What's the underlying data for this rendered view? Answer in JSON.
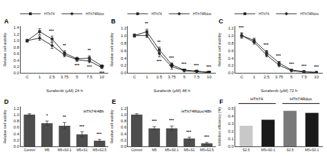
{
  "chart_data": [
    {
      "type": "line",
      "title": "A",
      "xlabel": "Sorafenib (μM) 24 h",
      "ylabel": "Relative cell viability",
      "categories": [
        "C",
        "1",
        "2.5",
        "3.75",
        "5",
        "7.5",
        "10"
      ],
      "series": [
        {
          "name": "HTh74",
          "color": "#2b2b2b",
          "marker": "square",
          "values": [
            1.0,
            1.28,
            1.05,
            0.62,
            0.44,
            0.46,
            0.22
          ],
          "errors": [
            0.04,
            0.09,
            0.09,
            0.07,
            0.05,
            0.07,
            0.03
          ]
        },
        {
          "name": "HTh74Rdox",
          "color": "#2b2b2b",
          "marker": "diamond",
          "values": [
            1.0,
            1.08,
            0.85,
            0.56,
            0.41,
            0.37,
            0.17
          ],
          "errors": [
            0.04,
            0.07,
            0.09,
            0.06,
            0.05,
            0.05,
            0.03
          ]
        }
      ],
      "ylim": [
        0.0,
        1.45
      ],
      "yticks": [
        {
          "value": 0.0,
          "label": "0.0"
        },
        0.2,
        0.4,
        0.6,
        0.8,
        {
          "value": 1.0,
          "label": "1.0"
        },
        1.2,
        1.4
      ],
      "grid": false,
      "legend": "top",
      "annotations": [
        {
          "category": "2.5",
          "text": "***",
          "position": "above"
        },
        {
          "category": "3.75",
          "text": "**",
          "position": "above"
        },
        {
          "category": "7.5",
          "text": "**",
          "position": "above"
        },
        {
          "category": "5",
          "text": "***",
          "position": "between"
        },
        {
          "category": "10",
          "text": "***",
          "position": "between"
        },
        {
          "category": "5",
          "text": "***",
          "position": "below"
        },
        {
          "category": "7.5",
          "text": "***",
          "position": "below"
        },
        {
          "category": "10",
          "text": "***",
          "position": "below"
        }
      ]
    },
    {
      "type": "line",
      "title": "B",
      "xlabel": "Sorafenib (μM) 48 h",
      "ylabel": "Relative cell viability",
      "categories": [
        "C",
        "1",
        "2.5",
        "3.75",
        "5",
        "7.5",
        "10"
      ],
      "series": [
        {
          "name": "HTh74",
          "color": "#2b2b2b",
          "marker": "square",
          "values": [
            1.0,
            1.1,
            0.62,
            0.22,
            0.08,
            0.05,
            0.02
          ],
          "errors": [
            0.04,
            0.07,
            0.07,
            0.05,
            0.02,
            0.01,
            0.01
          ]
        },
        {
          "name": "HTh74Rdox",
          "color": "#2b2b2b",
          "marker": "diamond",
          "values": [
            1.0,
            1.0,
            0.52,
            0.17,
            0.06,
            0.04,
            0.01
          ],
          "errors": [
            0.04,
            0.05,
            0.09,
            0.07,
            0.02,
            0.01,
            0.005
          ]
        }
      ],
      "ylim": [
        0.0,
        1.25
      ],
      "yticks": [
        {
          "value": 0.0,
          "label": "0.0"
        },
        0.2,
        0.4,
        0.6,
        0.8,
        {
          "value": 1.0,
          "label": "1.0"
        },
        1.2
      ],
      "grid": false,
      "legend": "top",
      "annotations": [
        {
          "category": "1",
          "text": "**",
          "position": "above"
        },
        {
          "category": "2.5",
          "text": "**",
          "position": "above"
        },
        {
          "category": "3.75",
          "text": "***",
          "position": "above"
        },
        {
          "category": "5",
          "text": "***",
          "position": "above"
        },
        {
          "category": "7.5",
          "text": "***",
          "position": "above"
        },
        {
          "category": "10",
          "text": "***",
          "position": "above"
        },
        {
          "category": "3.75",
          "text": "***",
          "position": "between"
        },
        {
          "category": "5",
          "text": "***",
          "position": "between"
        },
        {
          "category": "7.5",
          "text": "***",
          "position": "between"
        },
        {
          "category": "10",
          "text": "***",
          "position": "between"
        },
        {
          "category": "2.5",
          "text": "***",
          "position": "below"
        }
      ]
    },
    {
      "type": "line",
      "title": "C",
      "xlabel": "Sorafenib (μM) 72 h",
      "ylabel": "Relative cell viability",
      "categories": [
        "C",
        "1",
        "2.5",
        "3.75",
        "5",
        "7.5",
        "10"
      ],
      "series": [
        {
          "name": "HTh74",
          "color": "#2b2b2b",
          "marker": "square",
          "values": [
            1.0,
            0.87,
            0.55,
            0.27,
            0.08,
            0.04,
            0.02
          ],
          "errors": [
            0.07,
            0.06,
            0.05,
            0.04,
            0.015,
            0.01,
            0.008
          ]
        },
        {
          "name": "HTh74Rdox",
          "color": "#2b2b2b",
          "marker": "diamond",
          "values": [
            1.0,
            0.82,
            0.48,
            0.21,
            0.06,
            0.025,
            0.01
          ],
          "errors": [
            0.06,
            0.05,
            0.05,
            0.04,
            0.015,
            0.01,
            0.005
          ]
        }
      ],
      "ylim": [
        0.0,
        1.25
      ],
      "yticks": [
        {
          "value": 0.0,
          "label": "0.0"
        },
        0.2,
        0.4,
        0.6,
        0.8,
        {
          "value": 1.0,
          "label": "1.0"
        },
        1.2
      ],
      "grid": false,
      "legend": "top",
      "annotations": [
        {
          "category": "C",
          "text": "***",
          "position": "above"
        },
        {
          "category": "2.5",
          "text": "***",
          "position": "above"
        },
        {
          "category": "3.75",
          "text": "***",
          "position": "above"
        },
        {
          "category": "5",
          "text": "***",
          "position": "above"
        },
        {
          "category": "7.5",
          "text": "***",
          "position": "above"
        },
        {
          "category": "10",
          "text": "***",
          "position": "above"
        }
      ]
    },
    {
      "type": "bar",
      "title": "D",
      "subtitle": "HTh74/48h",
      "ylabel": "Relative cell viability",
      "categories": [
        "Control",
        "M5",
        "M5+S0.1",
        "M5+S1",
        "M5+S2.5"
      ],
      "values": [
        1.0,
        0.73,
        0.65,
        0.38,
        0.18
      ],
      "errors": [
        0.03,
        0.07,
        0.1,
        0.08,
        0.04
      ],
      "color": "#4d4d4d",
      "ylim": [
        0.0,
        1.25
      ],
      "yticks": [
        {
          "value": 0.0,
          "label": "0.0"
        },
        0.2,
        0.4,
        0.6,
        0.8,
        {
          "value": 1.0,
          "label": "1.0"
        },
        1.2
      ],
      "grid": false,
      "annotations": [
        {
          "category": "M5",
          "text": "*",
          "position": "above"
        },
        {
          "category": "M5+S0.1",
          "text": "**",
          "position": "above"
        },
        {
          "category": "M5+S1",
          "text": "***",
          "position": "above"
        },
        {
          "category": "M5+S2.5",
          "text": "***",
          "position": "above"
        }
      ]
    },
    {
      "type": "bar",
      "title": "E",
      "subtitle": "HTh74Rdox/48h",
      "ylabel": "Relative cell viability",
      "categories": [
        "Control",
        "M5",
        "M5+S0.1",
        "M5+S1",
        "M5+S2.5"
      ],
      "values": [
        1.0,
        0.57,
        0.57,
        0.25,
        0.1
      ],
      "errors": [
        0.03,
        0.05,
        0.07,
        0.04,
        0.025
      ],
      "color": "#4d4d4d",
      "ylim": [
        0.0,
        1.25
      ],
      "yticks": [
        {
          "value": 0.0,
          "label": "0.0"
        },
        0.2,
        0.4,
        0.6,
        0.8,
        {
          "value": 1.0,
          "label": "1.0"
        },
        1.2
      ],
      "grid": false,
      "annotations": [
        {
          "category": "M5",
          "text": "***",
          "position": "above"
        },
        {
          "category": "M5+S0.1",
          "text": "***",
          "position": "above"
        },
        {
          "category": "M5+S1",
          "text": "***",
          "position": "above"
        },
        {
          "category": "M5+S2.5",
          "text": "***",
          "position": "above"
        }
      ]
    },
    {
      "type": "bar",
      "title": "F",
      "ylabel": "Inhibition efficiency (%)",
      "groups": [
        {
          "name": "HTh74",
          "categories": [
            "S2.5",
            "M5+S0.1"
          ]
        },
        {
          "name": "HTh74Rdox",
          "categories": [
            "S2.5",
            "M5+S0.1"
          ]
        }
      ],
      "values": [
        0.27,
        0.35,
        0.465,
        0.44
      ],
      "colors": [
        "#c8c8c8",
        "#1a1a1a",
        "#7a7a7a",
        "#1a1a1a"
      ],
      "ylim": [
        0.0,
        0.52
      ],
      "yticks": [
        {
          "value": 0.0,
          "label": "0.0"
        },
        0.1,
        0.2,
        0.3,
        0.4,
        0.5
      ],
      "grid": false
    }
  ]
}
